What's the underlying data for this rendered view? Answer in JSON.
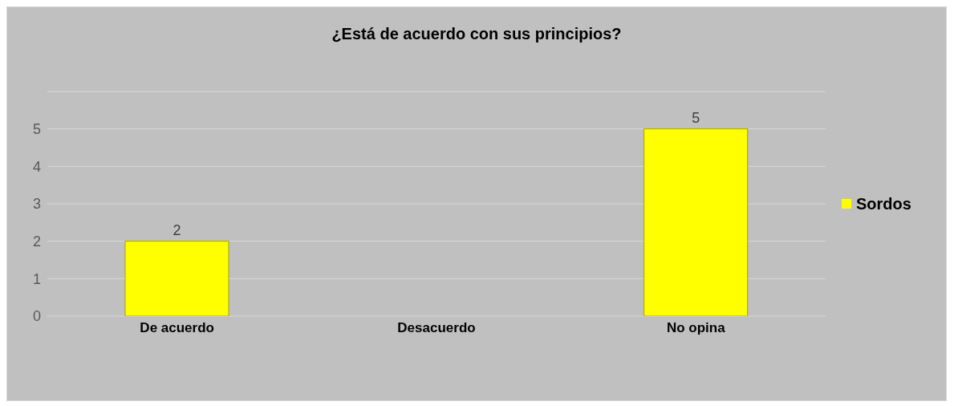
{
  "chart_data": {
    "type": "bar",
    "title": "¿Está de acuerdo con sus principios?",
    "categories": [
      "De acuerdo",
      "Desacuerdo",
      "No opina"
    ],
    "series": [
      {
        "name": "Sordos",
        "color": "#ffff00",
        "values": [
          2,
          0,
          5
        ]
      }
    ],
    "value_labels": [
      "2",
      null,
      "5"
    ],
    "ylim": [
      0,
      6
    ],
    "yticks": [
      0,
      1,
      2,
      3,
      4,
      5,
      {
        "value": 6,
        "label": null
      }
    ],
    "grid": "y",
    "legend": "right"
  }
}
